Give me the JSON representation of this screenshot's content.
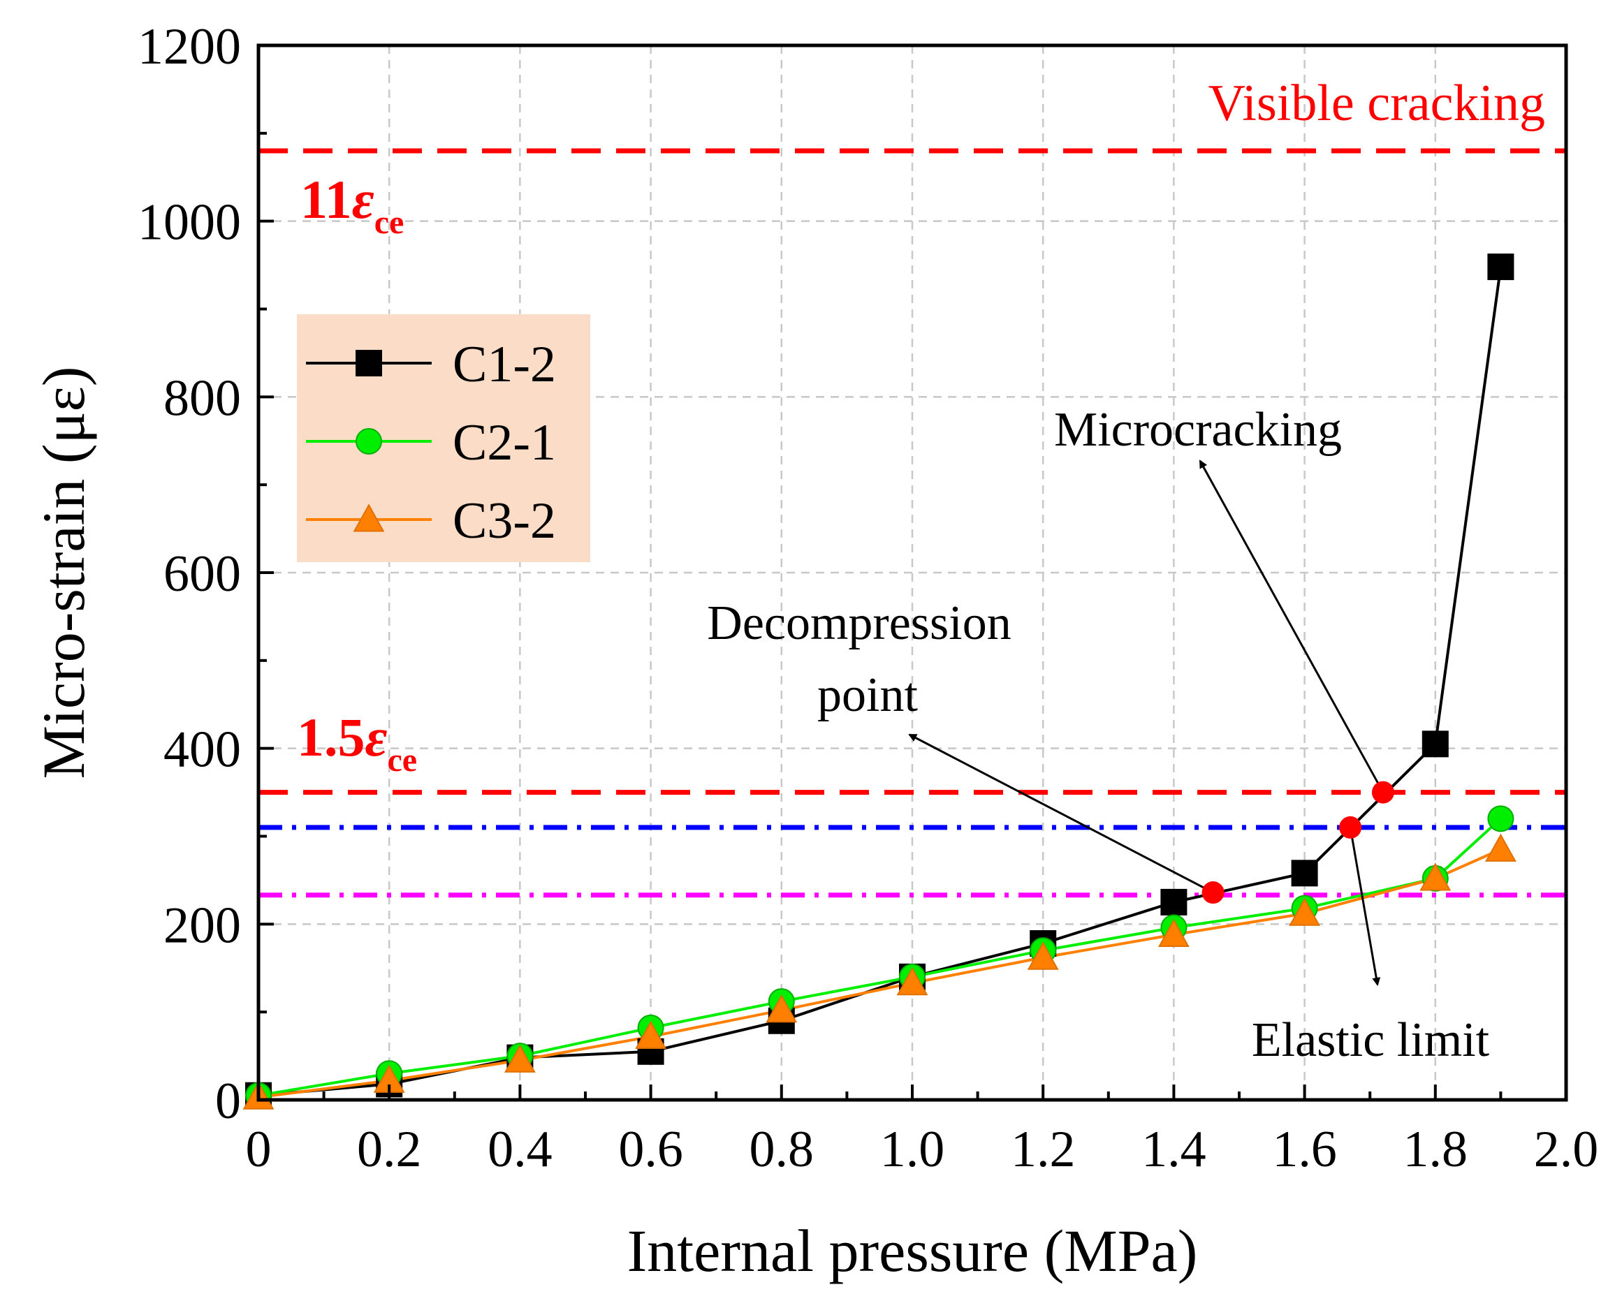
{
  "chart_data": {
    "type": "line",
    "xlabel": "Internal pressure (MPa)",
    "ylabel": "Micro-strain (με)",
    "xlim": [
      0,
      2.0
    ],
    "ylim": [
      0,
      1200
    ],
    "grid": true,
    "x_ticks": [
      "0",
      "0.2",
      "0.4",
      "0.6",
      "0.8",
      "1.0",
      "1.2",
      "1.4",
      "1.6",
      "1.8",
      "2.0"
    ],
    "y_ticks": [
      "0",
      "200",
      "400",
      "600",
      "800",
      "1000",
      "1200"
    ],
    "legend_position": "upper-left",
    "series": [
      {
        "name": "C1-2",
        "color": "#000000",
        "marker": "square",
        "x": [
          0,
          0.2,
          0.4,
          0.6,
          0.8,
          1.0,
          1.2,
          1.4,
          1.6,
          1.8,
          1.9
        ],
        "y": [
          5,
          18,
          48,
          55,
          90,
          140,
          178,
          225,
          258,
          405,
          948
        ]
      },
      {
        "name": "C2-1",
        "color": "#00ee00",
        "marker": "circle",
        "x": [
          0,
          0.2,
          0.4,
          0.6,
          0.8,
          1.0,
          1.2,
          1.4,
          1.6,
          1.8,
          1.9
        ],
        "y": [
          5,
          30,
          50,
          82,
          112,
          140,
          170,
          196,
          218,
          252,
          320
        ]
      },
      {
        "name": "C3-2",
        "color": "#ff8000",
        "marker": "triangle",
        "x": [
          0,
          0.2,
          0.4,
          0.6,
          0.8,
          1.0,
          1.2,
          1.4,
          1.6,
          1.8,
          1.9
        ],
        "y": [
          3,
          22,
          45,
          72,
          102,
          133,
          162,
          188,
          212,
          252,
          285
        ]
      }
    ],
    "reference_lines": [
      {
        "name": "visible-cracking-line",
        "y": 1080,
        "color": "#ff0000",
        "style": "dashed"
      },
      {
        "name": "1.5-epsilon-ce-line",
        "y": 350,
        "color": "#ff0000",
        "style": "dashed"
      },
      {
        "name": "blue-dashdot-line",
        "y": 310,
        "color": "#0000ff",
        "style": "dashdot"
      },
      {
        "name": "magenta-dashdot-line",
        "y": 233,
        "color": "#ff00ff",
        "style": "dashdot"
      }
    ],
    "key_points": [
      {
        "name": "decompression-point",
        "x": 1.46,
        "y": 236,
        "color": "#ff0000"
      },
      {
        "name": "elastic-limit-point",
        "x": 1.67,
        "y": 310,
        "color": "#ff0000"
      },
      {
        "name": "microcracking-point",
        "x": 1.72,
        "y": 350,
        "color": "#ff0000"
      }
    ],
    "annotations": {
      "visible_cracking": "Visible cracking",
      "eleven_coef": "11",
      "one_five_coef": "1.5",
      "epsilon": "ε",
      "ce_subscript": "ce",
      "microcracking": "Microcracking",
      "decompression_line1": "Decompression",
      "decompression_line2": "point",
      "elastic_limit": "Elastic limit"
    }
  }
}
